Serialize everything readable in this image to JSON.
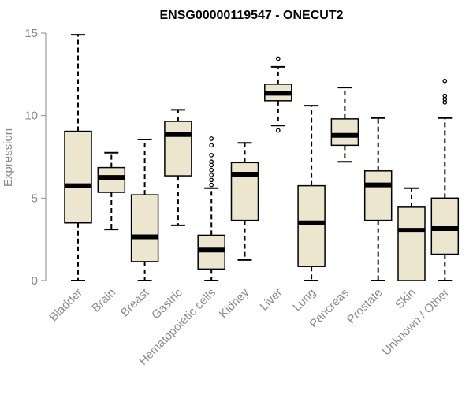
{
  "chart_data": {
    "type": "boxplot",
    "title": "ENSG00000119547 - ONECUT2",
    "xlabel": "",
    "ylabel": "Expression",
    "ylim": [
      0,
      15
    ],
    "yticks": [
      0,
      5,
      10,
      15
    ],
    "grid": false,
    "legend": "none",
    "colors": {
      "box_fill": "#ede6cf",
      "stroke": "#000000",
      "text": "#8a8a8a"
    },
    "categories": [
      "Bladder",
      "Brain",
      "Breast",
      "Gastric",
      "Hematopoietic cells",
      "Kidney",
      "Liver",
      "Lung",
      "Pancreas",
      "Prostate",
      "Skin",
      "Unknown / Other"
    ],
    "boxes": [
      {
        "category": "Bladder",
        "whisker_low": 0.0,
        "q1": 3.5,
        "median": 5.75,
        "q3": 9.05,
        "whisker_high": 14.9,
        "outliers": []
      },
      {
        "category": "Brain",
        "whisker_low": 3.1,
        "q1": 5.35,
        "median": 6.25,
        "q3": 6.85,
        "whisker_high": 7.75,
        "outliers": []
      },
      {
        "category": "Breast",
        "whisker_low": 0.0,
        "q1": 1.15,
        "median": 2.65,
        "q3": 5.2,
        "whisker_high": 8.55,
        "outliers": []
      },
      {
        "category": "Gastric",
        "whisker_low": 3.35,
        "q1": 6.35,
        "median": 8.85,
        "q3": 9.65,
        "whisker_high": 10.35,
        "outliers": []
      },
      {
        "category": "Hematopoietic cells",
        "whisker_low": 0.0,
        "q1": 0.7,
        "median": 1.85,
        "q3": 2.75,
        "whisker_high": 5.6,
        "outliers": [
          5.8,
          6.1,
          6.4,
          6.7,
          7.0,
          7.2,
          7.6,
          8.2,
          8.6
        ]
      },
      {
        "category": "Kidney",
        "whisker_low": 1.25,
        "q1": 3.65,
        "median": 6.45,
        "q3": 7.15,
        "whisker_high": 8.35,
        "outliers": []
      },
      {
        "category": "Liver",
        "whisker_low": 9.4,
        "q1": 10.9,
        "median": 11.35,
        "q3": 11.9,
        "whisker_high": 12.95,
        "outliers": [
          9.1,
          13.45
        ]
      },
      {
        "category": "Lung",
        "whisker_low": 0.0,
        "q1": 0.85,
        "median": 3.5,
        "q3": 5.75,
        "whisker_high": 10.6,
        "outliers": []
      },
      {
        "category": "Pancreas",
        "whisker_low": 7.2,
        "q1": 8.2,
        "median": 8.8,
        "q3": 9.8,
        "whisker_high": 11.7,
        "outliers": []
      },
      {
        "category": "Prostate",
        "whisker_low": 0.0,
        "q1": 3.65,
        "median": 5.8,
        "q3": 6.65,
        "whisker_high": 9.85,
        "outliers": []
      },
      {
        "category": "Skin",
        "whisker_low": 0.0,
        "q1": 0.0,
        "median": 3.05,
        "q3": 4.45,
        "whisker_high": 5.6,
        "outliers": []
      },
      {
        "category": "Unknown / Other",
        "whisker_low": 0.0,
        "q1": 1.6,
        "median": 3.15,
        "q3": 5.0,
        "whisker_high": 9.85,
        "outliers": [
          10.8,
          11.0,
          11.2,
          12.1
        ]
      }
    ]
  }
}
